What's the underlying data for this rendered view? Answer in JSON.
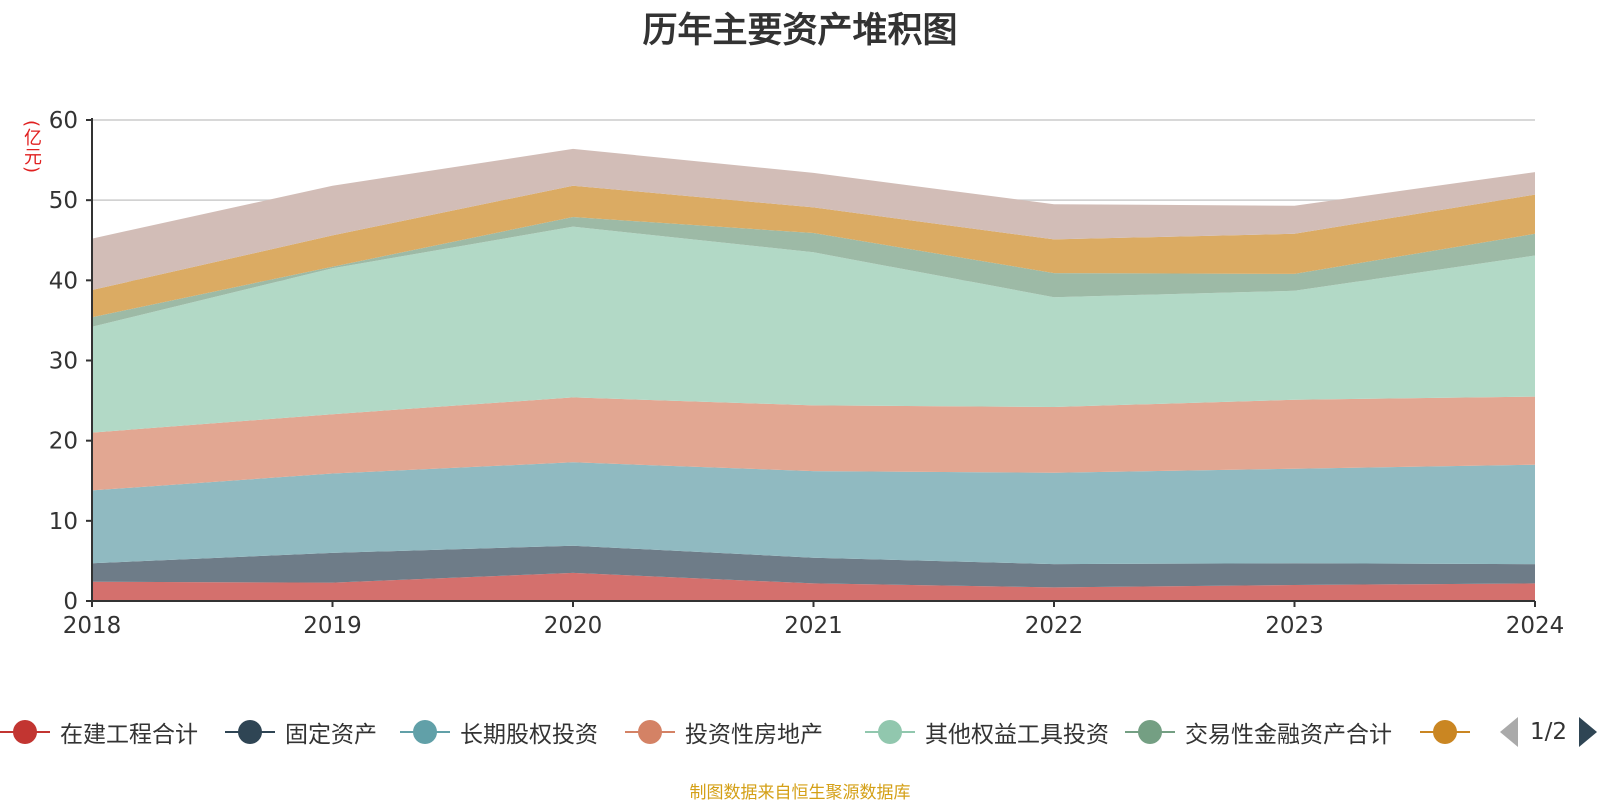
{
  "title": "历年主要资产堆积图",
  "unit_label": "(亿元)",
  "source_text": "制图数据来自恒生聚源数据库",
  "pager": {
    "text": "1/2"
  },
  "legend_visible": [
    {
      "name": "在建工程合计",
      "color": "#c23531"
    },
    {
      "name": "固定资产",
      "color": "#2f4554"
    },
    {
      "name": "长期股权投资",
      "color": "#61a0a8"
    },
    {
      "name": "投资性房地产",
      "color": "#d48265"
    },
    {
      "name": "其他权益工具投资",
      "color": "#91c7ae"
    },
    {
      "name": "交易性金融资产合计",
      "color": "#749f83"
    },
    {
      "name": "",
      "color": "#ca8622"
    }
  ],
  "chart_data": {
    "type": "area",
    "stacked": true,
    "x": [
      "2018",
      "2019",
      "2020",
      "2021",
      "2022",
      "2023",
      "2024"
    ],
    "ylim": [
      0,
      60
    ],
    "yticks": [
      0,
      10,
      20,
      30,
      40,
      50,
      60
    ],
    "grid": true,
    "series": [
      {
        "name": "在建工程合计",
        "color": "#d4706d",
        "values": [
          2.4,
          2.3,
          3.5,
          2.2,
          1.7,
          2.0,
          2.2
        ]
      },
      {
        "name": "固定资产",
        "color": "#6e7c88",
        "values": [
          2.3,
          3.7,
          3.4,
          3.2,
          2.9,
          2.7,
          2.4
        ]
      },
      {
        "name": "长期股权投资",
        "color": "#90bac1",
        "values": [
          9.1,
          9.9,
          10.4,
          10.8,
          11.4,
          11.8,
          12.4
        ]
      },
      {
        "name": "投资性房地产",
        "color": "#e2a792",
        "values": [
          7.2,
          7.4,
          8.1,
          8.2,
          8.2,
          8.6,
          8.5
        ]
      },
      {
        "name": "其他权益工具投资",
        "color": "#b2d9c6",
        "values": [
          13.2,
          18.2,
          21.3,
          19.1,
          13.7,
          13.6,
          17.6
        ]
      },
      {
        "name": "交易性金融资产合计",
        "color": "#9dbaa6",
        "values": [
          1.2,
          0.2,
          1.2,
          2.4,
          3.0,
          2.1,
          2.7
        ]
      },
      {
        "name": "",
        "color": "#dbab63",
        "values": [
          3.4,
          3.9,
          3.9,
          3.2,
          4.2,
          5.0,
          4.9
        ]
      },
      {
        "name": "",
        "color": "#d2bdb7",
        "values": [
          6.4,
          6.2,
          4.6,
          4.3,
          4.4,
          3.5,
          2.8
        ]
      }
    ]
  }
}
